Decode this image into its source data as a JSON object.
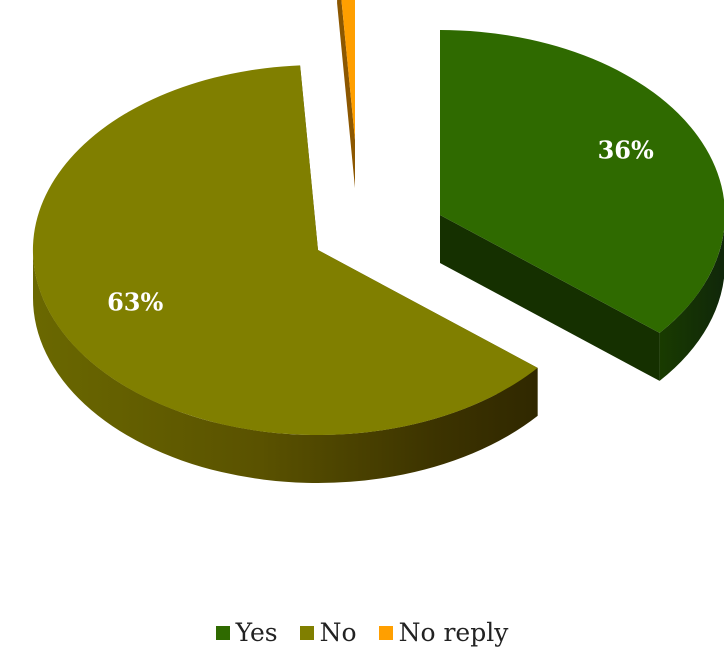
{
  "chart_data": {
    "type": "pie",
    "style": "3d-exploded",
    "title": "",
    "categories": [
      "Yes",
      "No",
      "No reply"
    ],
    "values": [
      36,
      63,
      1
    ],
    "data_labels": [
      "36%",
      "63%",
      ""
    ],
    "colors": [
      "#2f6a00",
      "#807f00",
      "#ff9f00"
    ],
    "legend_position": "bottom"
  }
}
